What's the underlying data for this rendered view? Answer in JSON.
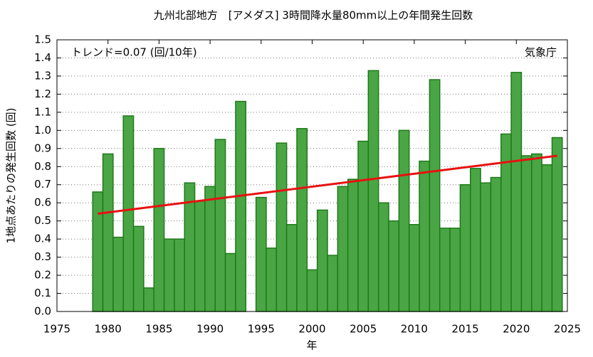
{
  "chart_data": {
    "type": "bar",
    "title": "九州北部地方　[アメダス] 3時間降水量80mm以上の年間発生回数",
    "annotation": "トレンド=0.07 (回/10年)",
    "source": "気象庁",
    "xlabel": "年",
    "ylabel": "1地点あたりの発生回数 (回)",
    "x": [
      1979,
      1980,
      1981,
      1982,
      1983,
      1984,
      1985,
      1986,
      1987,
      1988,
      1989,
      1990,
      1991,
      1992,
      1993,
      1994,
      1995,
      1996,
      1997,
      1998,
      1999,
      2000,
      2001,
      2002,
      2003,
      2004,
      2005,
      2006,
      2007,
      2008,
      2009,
      2010,
      2011,
      2012,
      2013,
      2014,
      2015,
      2016,
      2017,
      2018,
      2019,
      2020,
      2021,
      2022,
      2023,
      2024
    ],
    "values": [
      0.66,
      0.87,
      0.41,
      1.08,
      0.47,
      0.13,
      0.9,
      0.4,
      0.4,
      0.71,
      0.61,
      0.69,
      0.95,
      0.32,
      1.16,
      0,
      0.63,
      0.35,
      0.93,
      0.48,
      1.01,
      0.23,
      0.56,
      0.31,
      0.69,
      0.73,
      0.94,
      1.33,
      0.6,
      0.5,
      1.0,
      0.48,
      0.83,
      1.28,
      0.46,
      0.46,
      0.7,
      0.79,
      0.71,
      0.74,
      0.98,
      1.32,
      0.86,
      0.87,
      0.81,
      0.96
    ],
    "color": "#4aa544",
    "edgecolor": "#1f7a1a",
    "trend": {
      "x": [
        1979,
        2024
      ],
      "values": [
        0.54,
        0.86
      ],
      "color": "#e81010"
    },
    "xlim": [
      1975,
      2025
    ],
    "xticks": [
      1975,
      1980,
      1985,
      1990,
      1995,
      2000,
      2005,
      2010,
      2015,
      2020,
      2025
    ],
    "ylim": [
      0,
      1.5
    ],
    "yticks": [
      {
        "value": 0,
        "label": "0.0"
      },
      0.1,
      0.2,
      0.3,
      0.4,
      0.5,
      0.6,
      0.7,
      0.8,
      0.9,
      {
        "value": 1,
        "label": "1.0"
      },
      1.1,
      1.2,
      1.3,
      1.4,
      1.5
    ],
    "grid": true
  }
}
